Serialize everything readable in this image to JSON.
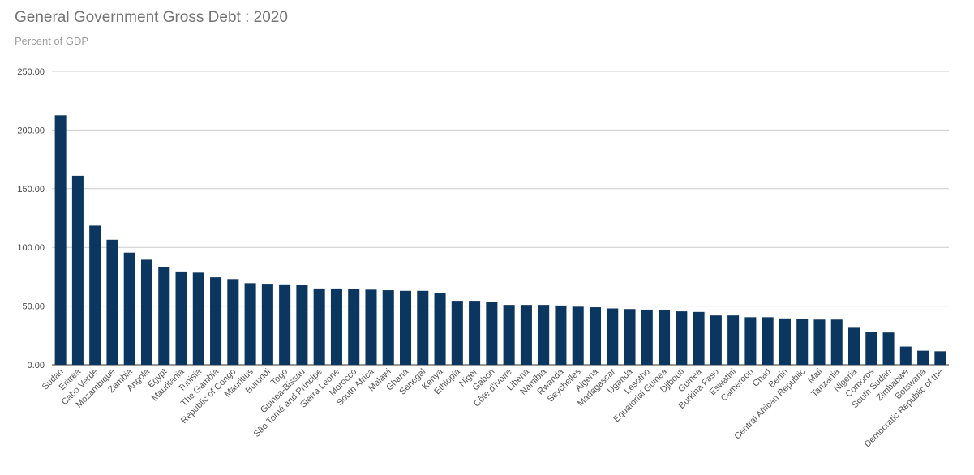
{
  "chart_data": {
    "type": "bar",
    "title": "General Government Gross Debt : 2020",
    "subtitle": "Percent of GDP",
    "xlabel": "",
    "ylabel": "",
    "ylim": [
      0,
      250
    ],
    "yticks": [
      "0.00",
      "50.00",
      "100.00",
      "150.00",
      "200.00",
      "250.00"
    ],
    "grid": true,
    "bar_color": "#0b3660",
    "categories": [
      "Sudan",
      "Eritrea",
      "Cabo Verde",
      "Mozambique",
      "Zambia",
      "Angola",
      "Egypt",
      "Mauritania",
      "Tunisia",
      "The Gambia",
      "Republic of Congo",
      "Mauritius",
      "Burundi",
      "Togo",
      "Guinea-Bissau",
      "São Tomé and Príncipe",
      "Sierra Leone",
      "Morocco",
      "South Africa",
      "Malawi",
      "Ghana",
      "Senegal",
      "Kenya",
      "Ethiopia",
      "Niger",
      "Gabon",
      "Côte d'Ivoire",
      "Liberia",
      "Namibia",
      "Rwanda",
      "Seychelles",
      "Algeria",
      "Madagascar",
      "Uganda",
      "Lesotho",
      "Equatorial Guinea",
      "Djibouti",
      "Guinea",
      "Burkina Faso",
      "Eswatini",
      "Cameroon",
      "Chad",
      "Benin",
      "Central African Republic",
      "Mali",
      "Tanzania",
      "Nigeria",
      "Comoros",
      "South Sudan",
      "Zimbabwe",
      "Botswana",
      "Democratic Republic of the"
    ],
    "values": [
      212.5,
      161.0,
      118.5,
      106.5,
      95.5,
      89.5,
      83.5,
      79.5,
      78.5,
      74.5,
      73.0,
      69.5,
      69.0,
      68.5,
      68.0,
      65.0,
      65.0,
      64.5,
      64.0,
      63.5,
      63.0,
      63.0,
      61.0,
      54.5,
      54.5,
      53.5,
      51.0,
      51.0,
      51.0,
      50.5,
      49.5,
      49.0,
      48.0,
      47.5,
      47.0,
      46.5,
      45.5,
      45.0,
      42.0,
      42.0,
      40.5,
      40.5,
      39.5,
      39.0,
      38.5,
      38.5,
      31.5,
      28.0,
      27.5,
      15.5,
      12.0,
      11.5
    ]
  }
}
